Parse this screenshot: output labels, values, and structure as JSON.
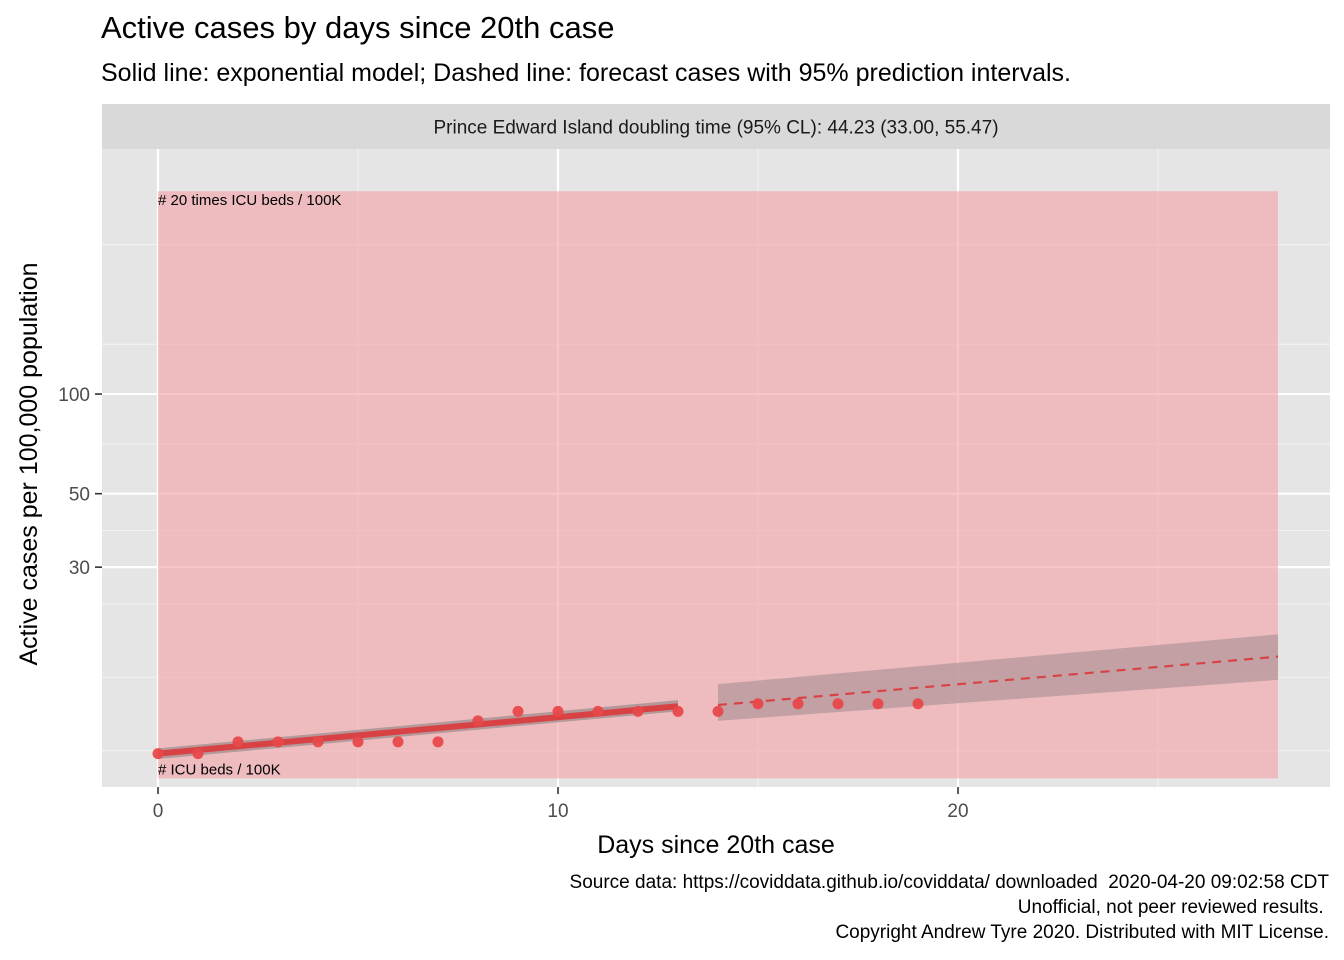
{
  "chart_data": {
    "type": "scatter",
    "title": "Active cases by days since 20th case",
    "subtitle": "Solid line: exponential model; Dashed line: forecast cases with 95% prediction intervals.",
    "facet_label": "Prince Edward Island doubling time (95% CL): 44.23 (33.00, 55.47)",
    "xlabel": "Days since 20th case",
    "ylabel": "Active cases per 100,000 population",
    "x_scale": "linear",
    "y_scale": "log",
    "xlim": [
      -1.4,
      29.3
    ],
    "ylim": [
      6.5,
      550
    ],
    "x_ticks": [
      0,
      10,
      20
    ],
    "y_ticks": [
      30,
      50,
      100
    ],
    "grid": true,
    "observed_points": {
      "x": [
        0,
        1,
        2,
        3,
        4,
        5,
        6,
        7,
        8,
        9,
        10,
        11,
        12,
        13,
        14,
        15,
        16,
        17,
        18,
        19
      ],
      "y": [
        8.2,
        8.2,
        8.9,
        8.9,
        8.9,
        8.9,
        8.9,
        8.9,
        10.3,
        11.0,
        11.0,
        11.0,
        11.0,
        11.0,
        11.0,
        11.6,
        11.6,
        11.6,
        11.6,
        11.6
      ],
      "color": "#e8484a"
    },
    "fitted_model": {
      "x": [
        0,
        13
      ],
      "y": [
        8.2,
        11.4
      ],
      "ci_lower": [
        7.9,
        11.0
      ],
      "ci_upper": [
        8.5,
        11.9
      ],
      "line_color": "#d94245",
      "band_color": "#9a8a8a"
    },
    "forecast": {
      "x": [
        14,
        28
      ],
      "y": [
        11.5,
        16.1
      ],
      "pi_lower": [
        10.3,
        13.7
      ],
      "pi_upper": [
        13.3,
        18.8
      ],
      "line_color": "#d94245",
      "band_color": "#b39799"
    },
    "icu_band": {
      "xmin": 0,
      "xmax": 28,
      "lower": 6.9,
      "upper": 410,
      "color": "#f4a3a8",
      "lower_label": "# ICU beds / 100K",
      "upper_label": "# 20 times ICU beds / 100K"
    },
    "panel_background": "#e5e5e5",
    "strip_background": "#d9d9d9"
  },
  "caption": {
    "line1": "Source data: https://coviddata.github.io/coviddata/ downloaded  2020-04-20 09:02:58 CDT",
    "line2": "Unofficial, not peer reviewed results. ",
    "line3": "Copyright Andrew Tyre 2020. Distributed with MIT License."
  }
}
